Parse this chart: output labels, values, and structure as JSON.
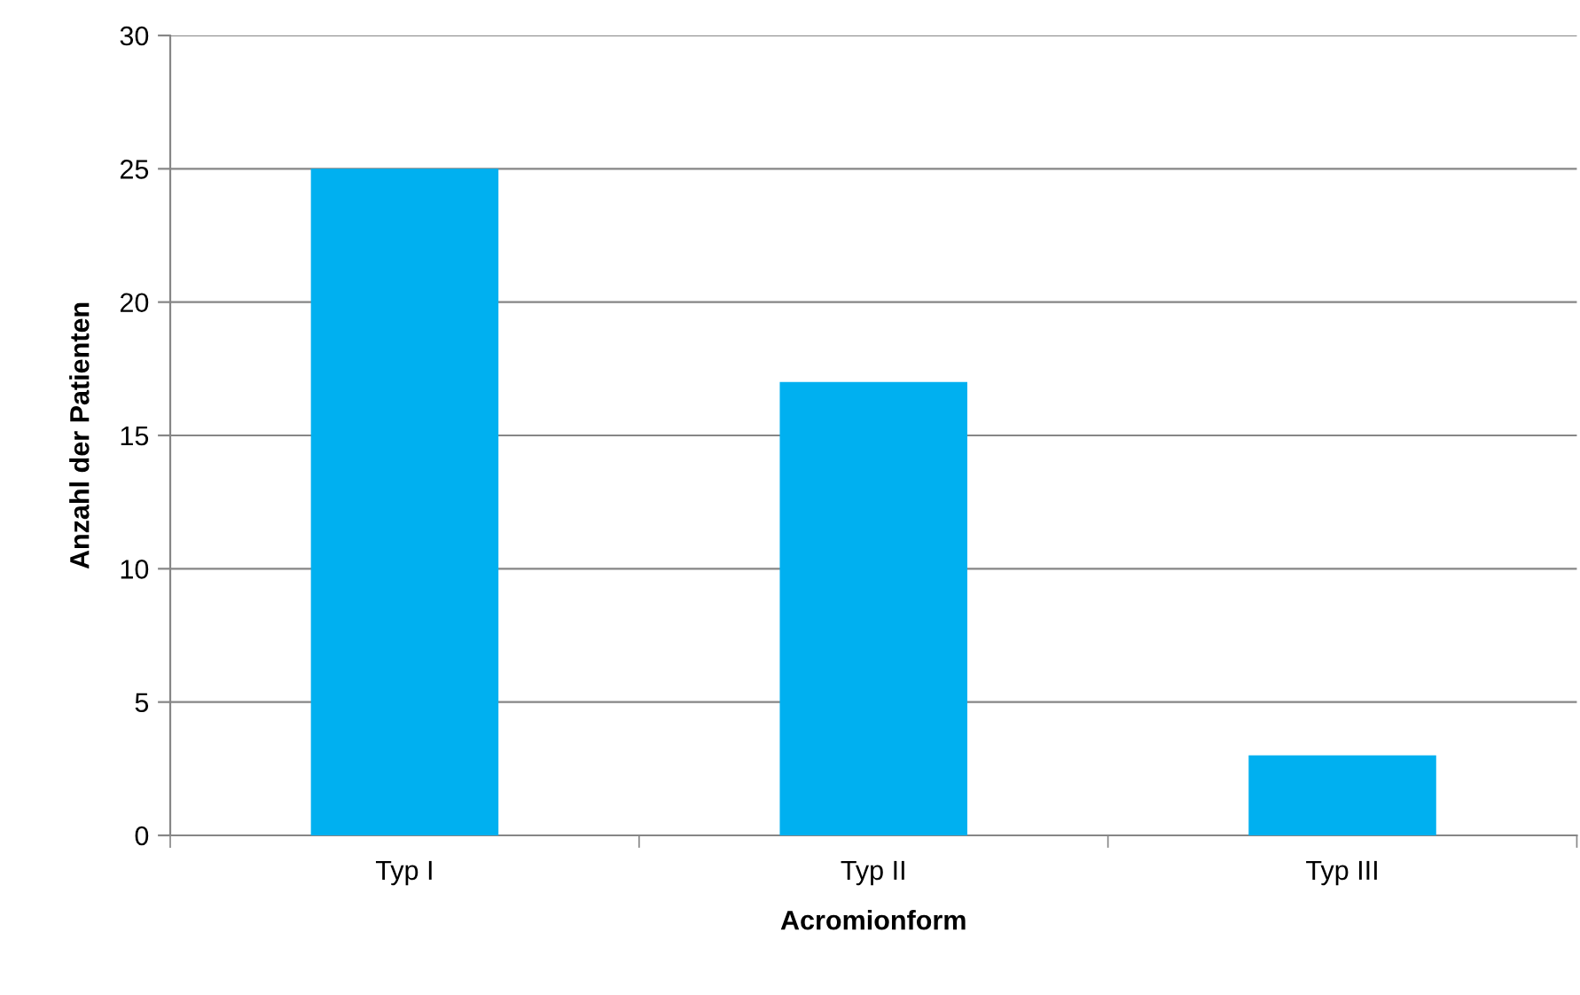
{
  "chart_data": {
    "type": "bar",
    "categories": [
      "Typ I",
      "Typ II",
      "Typ III"
    ],
    "values": [
      25,
      17,
      3
    ],
    "color": "#00b0f0",
    "xlabel": "Acromionform",
    "ylabel": "Anzahl der Patienten",
    "ylim": [
      0,
      30
    ],
    "yticks": [
      0,
      5,
      10,
      15,
      20,
      25,
      30
    ],
    "grid": "y",
    "legend": false
  }
}
